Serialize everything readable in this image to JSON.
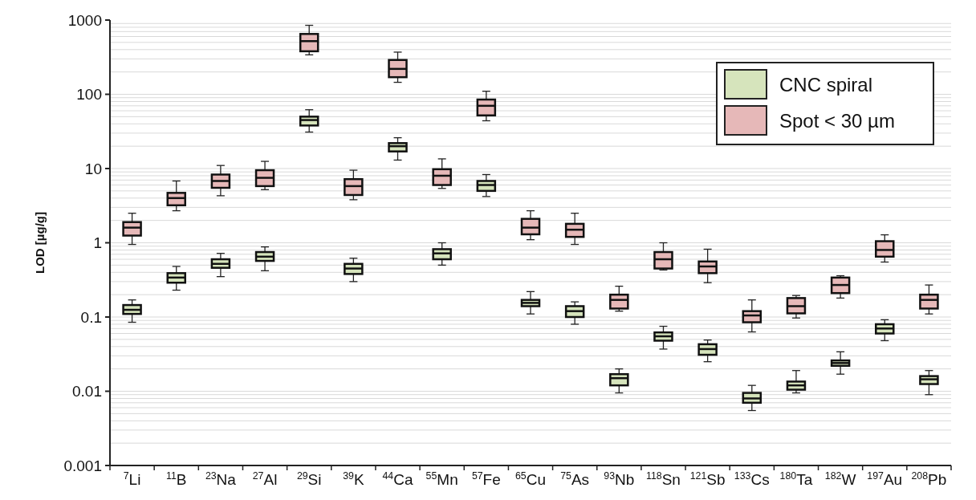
{
  "chart_data": {
    "type": "box",
    "ylabel": "LOD [µg/g]",
    "log": "y",
    "grid": "y",
    "legend": "top right",
    "categories": [
      "$^{7}$Li",
      "$^{11}$B",
      "$^{23}$Na",
      "$^{27}$Al",
      "$^{29}$Si",
      "$^{39}$K",
      "$^{44}$Ca",
      "$^{55}$Mn",
      "$^{57}$Fe",
      "$^{65}$Cu",
      "$^{75}$As",
      "$^{93}$Nb",
      "$^{118}$Sn",
      "$^{121}$Sb",
      "$^{133}$Cs",
      "$^{180}$Ta",
      "$^{182}$W",
      "$^{197}$Au",
      "$^{208}$Pb"
    ],
    "ylim": [
      0.001,
      1000
    ],
    "yticks": [
      0.001,
      0.01,
      0.1,
      1,
      10,
      100,
      1000
    ],
    "series": [
      {
        "name": "CNC spiral",
        "color": "#d6e4bc",
        "boxes": [
          {
            "low": 0.085,
            "q1": 0.11,
            "median": 0.125,
            "q3": 0.145,
            "high": 0.17
          },
          {
            "low": 0.23,
            "q1": 0.29,
            "median": 0.34,
            "q3": 0.39,
            "high": 0.48
          },
          {
            "low": 0.35,
            "q1": 0.46,
            "median": 0.52,
            "q3": 0.6,
            "high": 0.72
          },
          {
            "low": 0.42,
            "q1": 0.57,
            "median": 0.65,
            "q3": 0.75,
            "high": 0.88
          },
          {
            "low": 31,
            "q1": 38,
            "median": 45,
            "q3": 50,
            "high": 62
          },
          {
            "low": 0.3,
            "q1": 0.38,
            "median": 0.45,
            "q3": 0.52,
            "high": 0.62
          },
          {
            "low": 13,
            "q1": 17,
            "median": 20,
            "q3": 22,
            "high": 26
          },
          {
            "low": 0.5,
            "q1": 0.6,
            "median": 0.72,
            "q3": 0.82,
            "high": 1.0
          },
          {
            "low": 4.2,
            "q1": 5.0,
            "median": 6.0,
            "q3": 6.8,
            "high": 8.3
          },
          {
            "low": 0.11,
            "q1": 0.14,
            "median": 0.155,
            "q3": 0.17,
            "high": 0.22
          },
          {
            "low": 0.08,
            "q1": 0.1,
            "median": 0.12,
            "q3": 0.14,
            "high": 0.16
          },
          {
            "low": 0.0095,
            "q1": 0.012,
            "median": 0.015,
            "q3": 0.017,
            "high": 0.02
          },
          {
            "low": 0.037,
            "q1": 0.048,
            "median": 0.055,
            "q3": 0.062,
            "high": 0.075
          },
          {
            "low": 0.025,
            "q1": 0.031,
            "median": 0.037,
            "q3": 0.043,
            "high": 0.049
          },
          {
            "low": 0.0055,
            "q1": 0.007,
            "median": 0.008,
            "q3": 0.0095,
            "high": 0.012
          },
          {
            "low": 0.0095,
            "q1": 0.0105,
            "median": 0.012,
            "q3": 0.0135,
            "high": 0.019
          },
          {
            "low": 0.017,
            "q1": 0.022,
            "median": 0.024,
            "q3": 0.026,
            "high": 0.034
          },
          {
            "low": 0.048,
            "q1": 0.06,
            "median": 0.07,
            "q3": 0.08,
            "high": 0.092
          },
          {
            "low": 0.009,
            "q1": 0.0125,
            "median": 0.0145,
            "q3": 0.016,
            "high": 0.019
          }
        ]
      },
      {
        "name": "Spot < 30 µm",
        "color": "#e6b8b8",
        "boxes": [
          {
            "low": 0.95,
            "q1": 1.25,
            "median": 1.6,
            "q3": 1.9,
            "high": 2.5
          },
          {
            "low": 2.7,
            "q1": 3.2,
            "median": 4.0,
            "q3": 4.7,
            "high": 6.8
          },
          {
            "low": 4.3,
            "q1": 5.5,
            "median": 6.8,
            "q3": 8.3,
            "high": 11
          },
          {
            "low": 5.2,
            "q1": 5.8,
            "median": 7.5,
            "q3": 9.5,
            "high": 12.5
          },
          {
            "low": 340,
            "q1": 380,
            "median": 520,
            "q3": 650,
            "high": 850
          },
          {
            "low": 3.8,
            "q1": 4.4,
            "median": 5.8,
            "q3": 7.2,
            "high": 9.5
          },
          {
            "low": 145,
            "q1": 170,
            "median": 220,
            "q3": 290,
            "high": 370
          },
          {
            "low": 5.4,
            "q1": 6.0,
            "median": 8.0,
            "q3": 9.8,
            "high": 13.5
          },
          {
            "low": 44,
            "q1": 52,
            "median": 70,
            "q3": 85,
            "high": 110
          },
          {
            "low": 1.1,
            "q1": 1.3,
            "median": 1.6,
            "q3": 2.1,
            "high": 2.7
          },
          {
            "low": 0.95,
            "q1": 1.2,
            "median": 1.5,
            "q3": 1.8,
            "high": 2.5
          },
          {
            "low": 0.12,
            "q1": 0.13,
            "median": 0.17,
            "q3": 0.2,
            "high": 0.26
          },
          {
            "low": 0.43,
            "q1": 0.45,
            "median": 0.6,
            "q3": 0.75,
            "high": 1.0
          },
          {
            "low": 0.29,
            "q1": 0.39,
            "median": 0.48,
            "q3": 0.56,
            "high": 0.82
          },
          {
            "low": 0.063,
            "q1": 0.085,
            "median": 0.105,
            "q3": 0.12,
            "high": 0.17
          },
          {
            "low": 0.097,
            "q1": 0.112,
            "median": 0.14,
            "q3": 0.18,
            "high": 0.195
          },
          {
            "low": 0.18,
            "q1": 0.21,
            "median": 0.27,
            "q3": 0.34,
            "high": 0.36
          },
          {
            "low": 0.55,
            "q1": 0.65,
            "median": 0.8,
            "q3": 1.05,
            "high": 1.28
          },
          {
            "low": 0.11,
            "q1": 0.13,
            "median": 0.17,
            "q3": 0.2,
            "high": 0.27
          }
        ]
      }
    ]
  }
}
